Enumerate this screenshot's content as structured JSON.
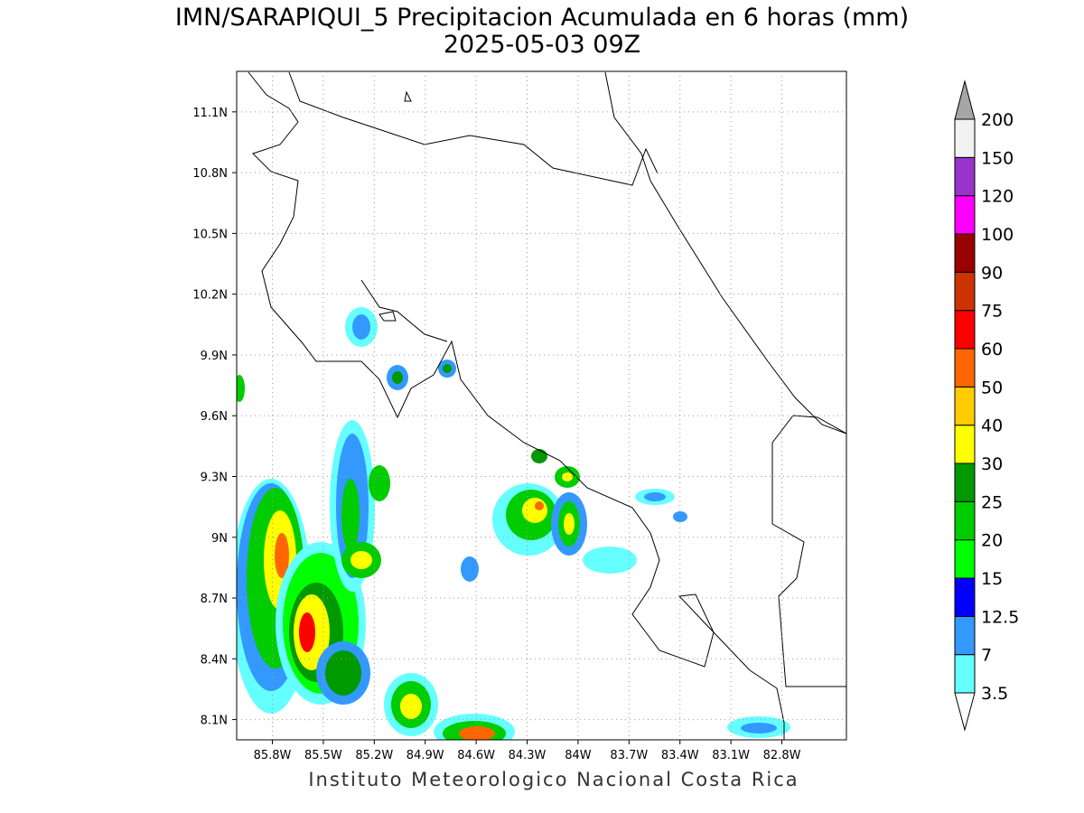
{
  "title": "IMN/SARAPIQUI_5 Precipitacion Acumulada en 6 horas (mm)",
  "subtitle": "2025-05-03 09Z",
  "footer": "Instituto Meteorologico Nacional Costa Rica",
  "map": {
    "lat_range": [
      8.0,
      11.3
    ],
    "lon_range": [
      -86.01,
      -82.42
    ],
    "lat_ticks": [
      {
        "value": 11.1,
        "label": "11.1N"
      },
      {
        "value": 10.8,
        "label": "10.8N"
      },
      {
        "value": 10.5,
        "label": "10.5N"
      },
      {
        "value": 10.2,
        "label": "10.2N"
      },
      {
        "value": 9.9,
        "label": "9.9N"
      },
      {
        "value": 9.6,
        "label": "9.6N"
      },
      {
        "value": 9.3,
        "label": "9.3N"
      },
      {
        "value": 9,
        "label": "9N"
      },
      {
        "value": 8.7,
        "label": "8.7N"
      },
      {
        "value": 8.4,
        "label": "8.4N"
      },
      {
        "value": 8.1,
        "label": "8.1N"
      }
    ],
    "lon_ticks": [
      {
        "value": -85.8,
        "label": "85.8W"
      },
      {
        "value": -85.5,
        "label": "85.5W"
      },
      {
        "value": -85.2,
        "label": "85.2W"
      },
      {
        "value": -84.9,
        "label": "84.9W"
      },
      {
        "value": -84.6,
        "label": "84.6W"
      },
      {
        "value": -84.3,
        "label": "84.3W"
      },
      {
        "value": -84,
        "label": "84W"
      },
      {
        "value": -83.7,
        "label": "83.7W"
      },
      {
        "value": -83.4,
        "label": "83.4W"
      },
      {
        "value": -83.1,
        "label": "83.1W"
      },
      {
        "value": -82.8,
        "label": "82.8W"
      }
    ],
    "grid": true
  },
  "legend": {
    "levels": [
      3.5,
      7,
      12.5,
      15,
      20,
      25,
      30,
      40,
      50,
      60,
      75,
      90,
      100,
      120,
      150,
      200
    ],
    "colors": [
      "#66ffff",
      "#3399ff",
      "#0000ff",
      "#00ff00",
      "#00cc00",
      "#009900",
      "#ffff00",
      "#ffcc00",
      "#ff6600",
      "#ff0000",
      "#cc3300",
      "#990000",
      "#ff00ff",
      "#9933cc",
      "#f2f2f2"
    ],
    "under_color": "#ffffff",
    "over_color": "#a6a6a6"
  }
}
